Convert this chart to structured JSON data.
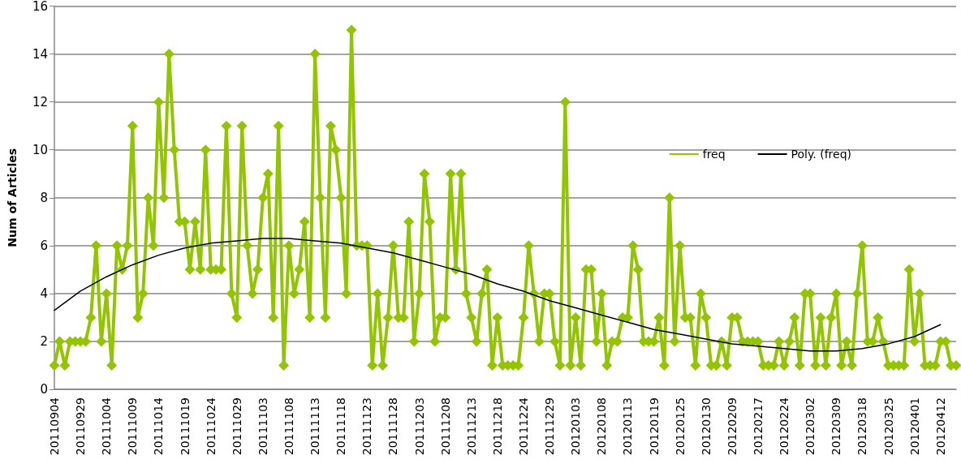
{
  "chart_data": {
    "type": "line",
    "ylabel": "Num of Articles",
    "categories": [
      "20110904",
      null,
      null,
      null,
      null,
      "20110929",
      null,
      null,
      null,
      null,
      "20111004",
      null,
      null,
      null,
      null,
      "20111009",
      null,
      null,
      null,
      null,
      "20111014",
      null,
      null,
      null,
      null,
      "20111019",
      null,
      null,
      null,
      null,
      "20111024",
      null,
      null,
      null,
      null,
      "20111029",
      null,
      null,
      null,
      null,
      "20111103",
      null,
      null,
      null,
      null,
      "20111108",
      null,
      null,
      null,
      null,
      "20111113",
      null,
      null,
      null,
      null,
      "20111118",
      null,
      null,
      null,
      null,
      "20111123",
      null,
      null,
      null,
      null,
      "20111128",
      null,
      null,
      null,
      null,
      "20111203",
      null,
      null,
      null,
      null,
      "20111208",
      null,
      null,
      null,
      null,
      "20111213",
      null,
      null,
      null,
      null,
      "20111218",
      null,
      null,
      null,
      null,
      "20111224",
      null,
      null,
      null,
      null,
      "20111229",
      null,
      null,
      null,
      null,
      "20120103",
      null,
      null,
      null,
      null,
      "20120108",
      null,
      null,
      null,
      null,
      "20120113",
      null,
      null,
      null,
      null,
      "20120119",
      null,
      null,
      null,
      null,
      "20120125",
      null,
      null,
      null,
      null,
      "20120130",
      null,
      null,
      null,
      null,
      "20120209",
      null,
      null,
      null,
      null,
      "20120217",
      null,
      null,
      null,
      null,
      "20120224",
      null,
      null,
      null,
      null,
      "20120302",
      null,
      null,
      null,
      null,
      "20120309",
      null,
      null,
      null,
      null,
      "20120318",
      null,
      null,
      null,
      null,
      "20120325",
      null,
      null,
      null,
      null,
      "20120401",
      null,
      null,
      null,
      null,
      "20120412",
      null,
      null,
      null
    ],
    "series": [
      {
        "name": "freq",
        "color": "#92c500",
        "marker": "diamond",
        "values": [
          1,
          2,
          1,
          2,
          2,
          2,
          2,
          3,
          6,
          2,
          4,
          1,
          6,
          5,
          6,
          11,
          3,
          4,
          8,
          6,
          12,
          8,
          14,
          10,
          7,
          7,
          5,
          7,
          5,
          10,
          5,
          5,
          5,
          11,
          4,
          3,
          11,
          6,
          4,
          5,
          8,
          9,
          3,
          11,
          1,
          6,
          4,
          5,
          7,
          3,
          14,
          8,
          3,
          11,
          10,
          8,
          4,
          15,
          6,
          6,
          6,
          1,
          4,
          1,
          3,
          6,
          3,
          3,
          7,
          2,
          4,
          9,
          7,
          2,
          3,
          3,
          9,
          5,
          9,
          4,
          3,
          2,
          4,
          5,
          1,
          3,
          1,
          1,
          1,
          1,
          3,
          6,
          4,
          2,
          4,
          4,
          2,
          1,
          12,
          1,
          3,
          1,
          5,
          5,
          2,
          4,
          1,
          2,
          2,
          3,
          3,
          6,
          5,
          2,
          2,
          2,
          3,
          1,
          8,
          2,
          6,
          3,
          3,
          1,
          4,
          3,
          1,
          1,
          2,
          1,
          3,
          3,
          2,
          2,
          2,
          2,
          1,
          1,
          1,
          2,
          1,
          2,
          3,
          1,
          4,
          4,
          1,
          3,
          1,
          3,
          4,
          1,
          2,
          1,
          4,
          6,
          2,
          2,
          3,
          2,
          1,
          1,
          1,
          1,
          5,
          2,
          4,
          1,
          1,
          1,
          2,
          2,
          1,
          1
        ]
      },
      {
        "name": "Poly. (freq)",
        "type": "line",
        "color": "#000000",
        "marker": "none",
        "x": [
          "20110904",
          "20110929",
          "20111004",
          "20111009",
          "20111014",
          "20111019",
          "20111024",
          "20111029",
          "20111103",
          "20111108",
          "20111113",
          "20111118",
          "20111123",
          "20111128",
          "20111203",
          "20111208",
          "20111213",
          "20111218",
          "20111224",
          "20111229",
          "20120103",
          "20120108",
          "20120113",
          "20120119",
          "20120125",
          "20120130",
          "20120209",
          "20120217",
          "20120224",
          "20120302",
          "20120309",
          "20120318",
          "20120325",
          "20120401",
          "20120412"
        ],
        "values": [
          3.3,
          4.1,
          4.7,
          5.2,
          5.6,
          5.9,
          6.1,
          6.2,
          6.3,
          6.3,
          6.2,
          6.1,
          5.9,
          5.7,
          5.4,
          5.1,
          4.8,
          4.4,
          4.1,
          3.7,
          3.4,
          3.1,
          2.8,
          2.5,
          2.3,
          2.1,
          1.9,
          1.8,
          1.7,
          1.6,
          1.6,
          1.7,
          1.9,
          2.2,
          2.7
        ]
      }
    ],
    "ylim": [
      0,
      16
    ],
    "yticks": [
      0,
      2,
      4,
      6,
      8,
      10,
      12,
      14,
      16
    ],
    "grid": "y",
    "legend": "right",
    "line_style": "solid"
  }
}
